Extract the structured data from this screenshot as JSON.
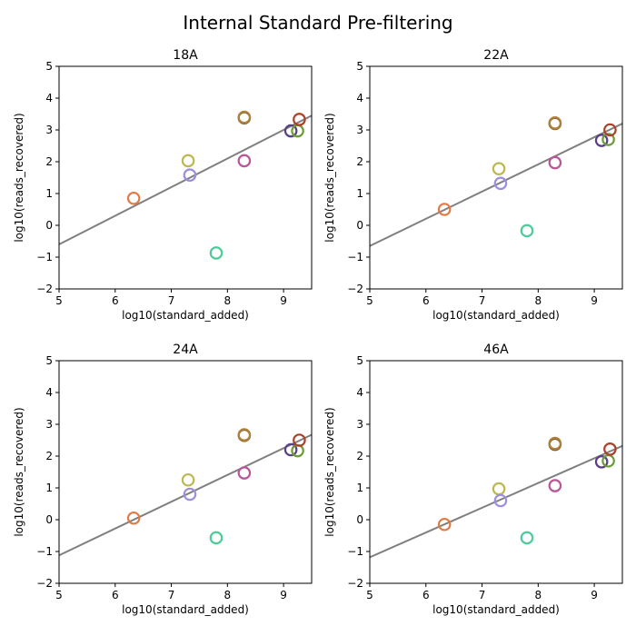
{
  "figure": {
    "title": "Internal Standard Pre-filtering"
  },
  "chart_data": [
    {
      "type": "scatter",
      "title": "18A",
      "xlabel": "log10(standard_added)",
      "ylabel": "log10(reads_recovered)",
      "xlim": [
        5,
        9.5
      ],
      "ylim": [
        -2,
        5
      ],
      "xticks": [
        5,
        6,
        7,
        8,
        9
      ],
      "yticks": [
        -2,
        -1,
        0,
        1,
        2,
        3,
        4,
        5
      ],
      "grid": false,
      "points": [
        {
          "x": 6.33,
          "y": 0.85,
          "color": "#e07b45"
        },
        {
          "x": 7.3,
          "y": 2.03,
          "color": "#bdb84f"
        },
        {
          "x": 7.33,
          "y": 1.58,
          "color": "#9d8ee0"
        },
        {
          "x": 7.8,
          "y": -0.87,
          "color": "#4fcb99"
        },
        {
          "x": 8.3,
          "y": 3.38,
          "color": "#7c5a2b"
        },
        {
          "x": 8.3,
          "y": 3.4,
          "color": "#b0803a"
        },
        {
          "x": 8.3,
          "y": 2.03,
          "color": "#b9569b"
        },
        {
          "x": 9.13,
          "y": 2.97,
          "color": "#5a3e8a"
        },
        {
          "x": 9.25,
          "y": 2.97,
          "color": "#6c9b3a"
        },
        {
          "x": 9.28,
          "y": 3.33,
          "color": "#a8432a"
        }
      ],
      "fit": {
        "x": [
          5,
          9.5
        ],
        "y": [
          -0.6,
          3.45
        ],
        "color": "#808080"
      }
    },
    {
      "type": "scatter",
      "title": "22A",
      "xlabel": "log10(standard_added)",
      "ylabel": "log10(reads_recovered)",
      "xlim": [
        5,
        9.5
      ],
      "ylim": [
        -2,
        5
      ],
      "xticks": [
        5,
        6,
        7,
        8,
        9
      ],
      "yticks": [
        -2,
        -1,
        0,
        1,
        2,
        3,
        4,
        5
      ],
      "grid": false,
      "points": [
        {
          "x": 6.33,
          "y": 0.5,
          "color": "#e07b45"
        },
        {
          "x": 7.3,
          "y": 1.78,
          "color": "#bdb84f"
        },
        {
          "x": 7.33,
          "y": 1.32,
          "color": "#9d8ee0"
        },
        {
          "x": 7.8,
          "y": -0.17,
          "color": "#4fcb99"
        },
        {
          "x": 8.3,
          "y": 3.2,
          "color": "#7c5a2b"
        },
        {
          "x": 8.3,
          "y": 3.22,
          "color": "#b0803a"
        },
        {
          "x": 8.3,
          "y": 1.97,
          "color": "#b9569b"
        },
        {
          "x": 9.13,
          "y": 2.67,
          "color": "#5a3e8a"
        },
        {
          "x": 9.25,
          "y": 2.7,
          "color": "#6c9b3a"
        },
        {
          "x": 9.28,
          "y": 3.0,
          "color": "#a8432a"
        }
      ],
      "fit": {
        "x": [
          5,
          9.5
        ],
        "y": [
          -0.65,
          3.2
        ],
        "color": "#808080"
      }
    },
    {
      "type": "scatter",
      "title": "24A",
      "xlabel": "log10(standard_added)",
      "ylabel": "log10(reads_recovered)",
      "xlim": [
        5,
        9.5
      ],
      "ylim": [
        -2,
        5
      ],
      "xticks": [
        5,
        6,
        7,
        8,
        9
      ],
      "yticks": [
        -2,
        -1,
        0,
        1,
        2,
        3,
        4,
        5
      ],
      "grid": false,
      "points": [
        {
          "x": 6.33,
          "y": 0.05,
          "color": "#e07b45"
        },
        {
          "x": 7.3,
          "y": 1.25,
          "color": "#bdb84f"
        },
        {
          "x": 7.33,
          "y": 0.8,
          "color": "#9d8ee0"
        },
        {
          "x": 7.8,
          "y": -0.57,
          "color": "#4fcb99"
        },
        {
          "x": 8.3,
          "y": 2.65,
          "color": "#7c5a2b"
        },
        {
          "x": 8.3,
          "y": 2.67,
          "color": "#b0803a"
        },
        {
          "x": 8.3,
          "y": 1.47,
          "color": "#b9569b"
        },
        {
          "x": 9.13,
          "y": 2.2,
          "color": "#5a3e8a"
        },
        {
          "x": 9.25,
          "y": 2.17,
          "color": "#6c9b3a"
        },
        {
          "x": 9.28,
          "y": 2.5,
          "color": "#a8432a"
        }
      ],
      "fit": {
        "x": [
          5,
          9.5
        ],
        "y": [
          -1.12,
          2.67
        ],
        "color": "#808080"
      }
    },
    {
      "type": "scatter",
      "title": "46A",
      "xlabel": "log10(standard_added)",
      "ylabel": "log10(reads_recovered)",
      "xlim": [
        5,
        9.5
      ],
      "ylim": [
        -2,
        5
      ],
      "xticks": [
        5,
        6,
        7,
        8,
        9
      ],
      "yticks": [
        -2,
        -1,
        0,
        1,
        2,
        3,
        4,
        5
      ],
      "grid": false,
      "points": [
        {
          "x": 6.33,
          "y": -0.15,
          "color": "#e07b45"
        },
        {
          "x": 7.3,
          "y": 0.97,
          "color": "#bdb84f"
        },
        {
          "x": 7.33,
          "y": 0.6,
          "color": "#9d8ee0"
        },
        {
          "x": 7.8,
          "y": -0.57,
          "color": "#4fcb99"
        },
        {
          "x": 8.3,
          "y": 2.37,
          "color": "#7c5a2b"
        },
        {
          "x": 8.3,
          "y": 2.4,
          "color": "#b0803a"
        },
        {
          "x": 8.3,
          "y": 1.07,
          "color": "#b9569b"
        },
        {
          "x": 9.13,
          "y": 1.82,
          "color": "#5a3e8a"
        },
        {
          "x": 9.25,
          "y": 1.85,
          "color": "#6c9b3a"
        },
        {
          "x": 9.28,
          "y": 2.22,
          "color": "#a8432a"
        }
      ],
      "fit": {
        "x": [
          5,
          9.5
        ],
        "y": [
          -1.18,
          2.32
        ],
        "color": "#808080"
      }
    }
  ]
}
